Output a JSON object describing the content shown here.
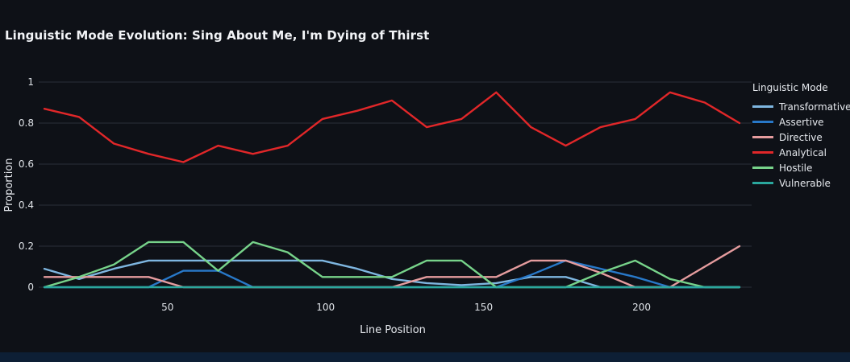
{
  "title": "Linguistic Mode Evolution: Sing About Me, I'm Dying of Thirst",
  "chart_data": {
    "type": "line",
    "title": "Linguistic Mode Evolution: Sing About Me, I'm Dying of Thirst",
    "xlabel": "Line Position",
    "ylabel": "Proportion",
    "legend_title": "Linguistic Mode",
    "legend_position": "right",
    "grid": "horizontal",
    "xlim": [
      11,
      231
    ],
    "ylim": [
      0,
      1
    ],
    "xticks": [
      50,
      100,
      150,
      200
    ],
    "yticks": [
      0,
      0.2,
      0.4,
      0.6,
      0.8,
      1
    ],
    "ytick_labels": [
      "0",
      "0.2",
      "0.4",
      "0.6",
      "0.8",
      "1"
    ],
    "x": [
      11,
      22,
      33,
      44,
      55,
      66,
      77,
      88,
      99,
      110,
      121,
      132,
      143,
      154,
      165,
      176,
      187,
      198,
      209,
      220,
      231
    ],
    "series": [
      {
        "name": "Transformative",
        "color": "#7eb6e0",
        "values": [
          0.09,
          0.04,
          0.09,
          0.13,
          0.13,
          0.13,
          0.13,
          0.13,
          0.13,
          0.09,
          0.04,
          0.02,
          0.01,
          0.02,
          0.05,
          0.05,
          0,
          0,
          0,
          0,
          0
        ]
      },
      {
        "name": "Assertive",
        "color": "#2878c8",
        "values": [
          0,
          0,
          0,
          0,
          0.08,
          0.08,
          0,
          0,
          0,
          0,
          0,
          0,
          0,
          0,
          0.06,
          0.13,
          0.09,
          0.05,
          0,
          0,
          0
        ]
      },
      {
        "name": "Directive",
        "color": "#e59c9e",
        "values": [
          0.05,
          0.05,
          0.05,
          0.05,
          0,
          0,
          0,
          0,
          0,
          0,
          0,
          0.05,
          0.05,
          0.05,
          0.13,
          0.13,
          0.07,
          0,
          0,
          0.1,
          0.2
        ]
      },
      {
        "name": "Analytical",
        "color": "#e12729",
        "values": [
          0.87,
          0.83,
          0.7,
          0.65,
          0.61,
          0.69,
          0.65,
          0.69,
          0.82,
          0.86,
          0.91,
          0.78,
          0.82,
          0.95,
          0.78,
          0.69,
          0.78,
          0.82,
          0.95,
          0.9,
          0.8
        ]
      },
      {
        "name": "Hostile",
        "color": "#77d38a",
        "values": [
          0,
          0.05,
          0.11,
          0.22,
          0.22,
          0.08,
          0.22,
          0.17,
          0.05,
          0.05,
          0.05,
          0.13,
          0.13,
          0,
          0,
          0,
          0.07,
          0.13,
          0.04,
          0,
          0
        ]
      },
      {
        "name": "Vulnerable",
        "color": "#2aa79d",
        "values": [
          0,
          0,
          0,
          0,
          0,
          0,
          0,
          0,
          0,
          0,
          0,
          0,
          0,
          0,
          0,
          0,
          0,
          0,
          0,
          0,
          0
        ]
      }
    ]
  }
}
